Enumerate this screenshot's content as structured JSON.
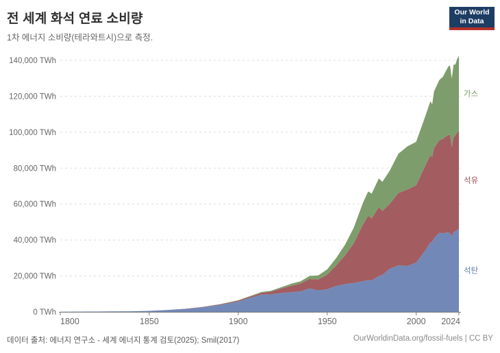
{
  "chart_data": {
    "type": "area",
    "stacked": true,
    "title": "전 세계 화석 연료 소비량",
    "subtitle": "1차 에너지 소비량(테라와트시)으로 측정.",
    "unit": "TWh",
    "xlabel": "",
    "ylabel": "",
    "xlim": [
      1800,
      2024
    ],
    "ylim": [
      0,
      140000
    ],
    "x_ticks": [
      1800,
      1850,
      1900,
      1950,
      2000,
      2024
    ],
    "y_ticks": [
      0,
      20000,
      40000,
      60000,
      80000,
      100000,
      120000,
      140000
    ],
    "grid": "dashed-horizontal",
    "legend_position": "right-inline",
    "x": [
      1800,
      1810,
      1820,
      1830,
      1840,
      1850,
      1860,
      1870,
      1880,
      1890,
      1900,
      1905,
      1910,
      1913,
      1918,
      1920,
      1925,
      1930,
      1935,
      1940,
      1945,
      1950,
      1955,
      1960,
      1965,
      1970,
      1973,
      1975,
      1979,
      1981,
      1985,
      1990,
      1995,
      2000,
      2005,
      2008,
      2009,
      2010,
      2013,
      2015,
      2018,
      2019,
      2020,
      2021,
      2022,
      2023,
      2024
    ],
    "series": [
      {
        "name": "석탄",
        "color": "#7289b7",
        "label_color": "#5b7cb9",
        "values": [
          100,
          140,
          180,
          250,
          360,
          570,
          1060,
          1640,
          2540,
          3860,
          5730,
          7320,
          8660,
          9610,
          9700,
          9990,
          10600,
          10940,
          11440,
          13050,
          11980,
          12600,
          14420,
          15440,
          16140,
          17070,
          17700,
          17560,
          19900,
          20600,
          23930,
          25890,
          25570,
          27430,
          34020,
          38700,
          38900,
          41000,
          44000,
          43790,
          44260,
          43850,
          42070,
          44470,
          44850,
          45570,
          46000
        ]
      },
      {
        "name": "석유",
        "color": "#a35c60",
        "label_color": "#9e5156",
        "values": [
          0,
          0,
          0,
          0,
          0,
          10,
          20,
          60,
          190,
          330,
          510,
          640,
          890,
          1020,
          1470,
          1740,
          2680,
          3630,
          4280,
          5250,
          6070,
          8130,
          11350,
          15880,
          22150,
          31350,
          35800,
          34450,
          38400,
          35600,
          36050,
          40300,
          42500,
          43000,
          47000,
          48500,
          47300,
          50000,
          51500,
          52500,
          54200,
          54600,
          49600,
          52800,
          53200,
          54300,
          54500
        ]
      },
      {
        "name": "가스",
        "color": "#7e9d6c",
        "label_color": "#76975f",
        "values": [
          0,
          0,
          0,
          0,
          0,
          0,
          0,
          10,
          70,
          150,
          230,
          280,
          390,
          450,
          500,
          550,
          730,
          1130,
          1310,
          1700,
          2240,
          2920,
          4120,
          6040,
          8740,
          12100,
          13550,
          13800,
          16000,
          16200,
          18400,
          21800,
          24000,
          24200,
          27500,
          30000,
          29300,
          31600,
          33500,
          34500,
          38000,
          38800,
          38200,
          40300,
          39600,
          40900,
          42000
        ]
      }
    ]
  },
  "logo": {
    "line1": "Our World",
    "line2": "in Data"
  },
  "footer": {
    "sources": "데이터 출처: 에너지 연구소 - 세계 에너지 통계 검토(2025); Smil(2017)",
    "attribution": "OurWorldinData.org/fossil-fuels | CC BY"
  }
}
